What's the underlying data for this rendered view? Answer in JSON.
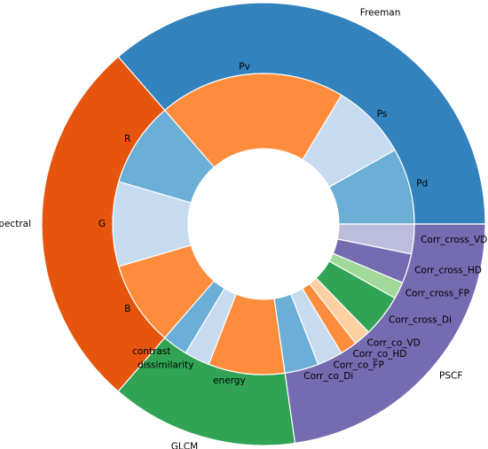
{
  "chart_data": {
    "type": "pie",
    "variant": "nested-donut",
    "title": "",
    "start_angle_deg": 0,
    "direction": "counterclockwise",
    "outer_ring": [
      {
        "label": "Freeman",
        "value": 4,
        "color": "#3182bd"
      },
      {
        "label": "Spectral",
        "value": 3,
        "color": "#e6550d"
      },
      {
        "label": "GLCM",
        "value": 1.5,
        "color": "#31a354"
      },
      {
        "label": "PSCF",
        "value": 2.5,
        "color": "#756bb1"
      }
    ],
    "inner_ring": [
      {
        "label": "Pd",
        "value": 0.9,
        "color": "#6baed6"
      },
      {
        "label": "Ps",
        "value": 0.9,
        "color": "#c6dbef"
      },
      {
        "label": "Pv",
        "value": 2.2,
        "color": "#fd8d3c"
      },
      {
        "label": "R",
        "value": 1.0,
        "color": "#6baed6"
      },
      {
        "label": "G",
        "value": 1.0,
        "color": "#c6dbef"
      },
      {
        "label": "B",
        "value": 1.0,
        "color": "#fd8d3c"
      },
      {
        "label": "contrast",
        "value": 0.3,
        "color": "#6baed6"
      },
      {
        "label": "dissimilarity",
        "value": 0.3,
        "color": "#c6dbef"
      },
      {
        "label": "energy",
        "value": 0.9,
        "color": "#fd8d3c"
      },
      {
        "label": "Corr_co_Di",
        "value": 0.4,
        "color": "#6baed6"
      },
      {
        "label": "Corr_co_FP",
        "value": 0.3,
        "color": "#c6dbef"
      },
      {
        "label": "Corr_co_HD",
        "value": 0.2,
        "color": "#fd8d3c"
      },
      {
        "label": "Corr_co_VD",
        "value": 0.2,
        "color": "#fdd0a2"
      },
      {
        "label": "Corr_cross_Di",
        "value": 0.5,
        "color": "#31a354"
      },
      {
        "label": "Corr_cross_FP",
        "value": 0.2,
        "color": "#a1d99b"
      },
      {
        "label": "Corr_cross_HD",
        "value": 0.35,
        "color": "#756bb1"
      },
      {
        "label": "Corr_cross_VD",
        "value": 0.35,
        "color": "#bcbddc"
      }
    ]
  }
}
